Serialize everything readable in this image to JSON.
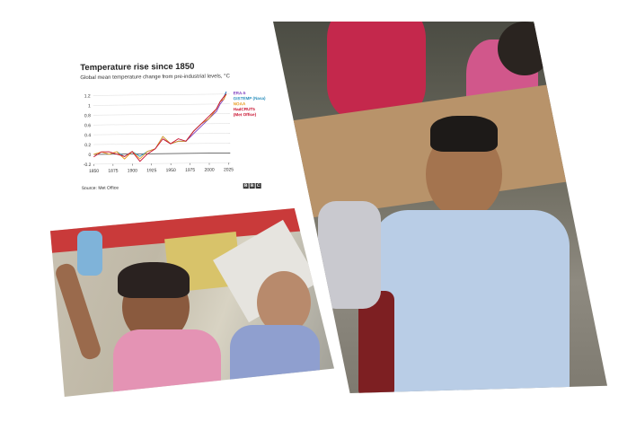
{
  "chart_data": {
    "type": "line",
    "title": "Temperature rise since 1850",
    "subtitle": "Global mean temperature change from pre-industrial levels, °C",
    "source": "Source: Met Office",
    "logo": "BBC",
    "x_ticks": [
      "1850",
      "1875",
      "1900",
      "1925",
      "1950",
      "1975",
      "2000",
      "2025"
    ],
    "y_ticks": [
      "1.2",
      "1",
      "0.8",
      "0.6",
      "0.4",
      "0.2",
      "0",
      "-0.2"
    ],
    "xlim": [
      1850,
      2025
    ],
    "ylim": [
      -0.2,
      1.3
    ],
    "series": [
      {
        "name": "ERA-5",
        "color": "#7f3fbf",
        "x": [
          1940,
          1950,
          1960,
          1970,
          1980,
          1990,
          2000,
          2010,
          2015,
          2020,
          2023
        ],
        "y": [
          0.3,
          0.2,
          0.25,
          0.25,
          0.4,
          0.55,
          0.7,
          0.85,
          1.0,
          1.1,
          1.25
        ]
      },
      {
        "name": "GISTEMP (Nasa)",
        "color": "#2a8fbd",
        "x": [
          1880,
          1890,
          1900,
          1910,
          1920,
          1930,
          1940,
          1950,
          1960,
          1970,
          1980,
          1990,
          2000,
          2010,
          2015,
          2020,
          2023
        ],
        "y": [
          0.05,
          -0.05,
          0.05,
          -0.05,
          0.05,
          0.1,
          0.35,
          0.2,
          0.25,
          0.25,
          0.45,
          0.6,
          0.7,
          0.9,
          1.05,
          1.15,
          1.25
        ]
      },
      {
        "name": "NOAA",
        "color": "#e89a1e",
        "x": [
          1850,
          1860,
          1870,
          1880,
          1890,
          1900,
          1910,
          1920,
          1930,
          1940,
          1950,
          1960,
          1970,
          1980,
          1990,
          2000,
          2010,
          2015,
          2020,
          2023
        ],
        "y": [
          0.0,
          0.05,
          0.0,
          0.05,
          -0.1,
          0.05,
          -0.1,
          0.05,
          0.1,
          0.35,
          0.2,
          0.25,
          0.25,
          0.45,
          0.6,
          0.7,
          0.9,
          1.05,
          1.1,
          1.2
        ]
      },
      {
        "name": "HadCRUT5 (Met Office)",
        "color": "#c8102e",
        "x": [
          1850,
          1860,
          1870,
          1880,
          1890,
          1900,
          1910,
          1920,
          1930,
          1940,
          1950,
          1960,
          1970,
          1980,
          1990,
          2000,
          2010,
          2015,
          2020,
          2023
        ],
        "y": [
          -0.05,
          0.05,
          0.05,
          0.0,
          -0.05,
          0.05,
          -0.15,
          0.0,
          0.1,
          0.3,
          0.2,
          0.3,
          0.25,
          0.45,
          0.6,
          0.75,
          0.9,
          1.05,
          1.15,
          1.2
        ]
      }
    ],
    "legend_lines": [
      "ERA-5",
      "GISTEMP (Nasa)",
      "NOAA",
      "HadCRUT5",
      "(Met Office)"
    ],
    "legend_colors": [
      "#7f3fbf",
      "#2a8fbd",
      "#e89a1e",
      "#c8102e",
      "#c8102e"
    ],
    "grid": true,
    "legend_placement": "top-right"
  }
}
